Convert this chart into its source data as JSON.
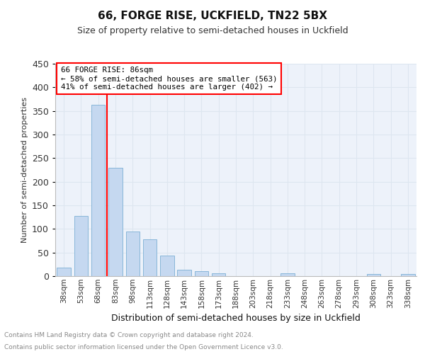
{
  "title": "66, FORGE RISE, UCKFIELD, TN22 5BX",
  "subtitle": "Size of property relative to semi-detached houses in Uckfield",
  "xlabel": "Distribution of semi-detached houses by size in Uckfield",
  "ylabel": "Number of semi-detached properties",
  "footnote1": "Contains HM Land Registry data © Crown copyright and database right 2024.",
  "footnote2": "Contains public sector information licensed under the Open Government Licence v3.0.",
  "categories": [
    "38sqm",
    "53sqm",
    "68sqm",
    "83sqm",
    "98sqm",
    "113sqm",
    "128sqm",
    "143sqm",
    "158sqm",
    "173sqm",
    "188sqm",
    "203sqm",
    "218sqm",
    "233sqm",
    "248sqm",
    "263sqm",
    "278sqm",
    "293sqm",
    "308sqm",
    "323sqm",
    "338sqm"
  ],
  "values": [
    18,
    128,
    363,
    229,
    95,
    78,
    44,
    13,
    10,
    6,
    0,
    0,
    0,
    6,
    0,
    0,
    0,
    0,
    4,
    0,
    4
  ],
  "bar_color": "#c5d8f0",
  "bar_edge_color": "#7bafd4",
  "property_bin_index": 3,
  "vline_color": "red",
  "annotation_text_line1": "66 FORGE RISE: 86sqm",
  "annotation_text_line2": "← 58% of semi-detached houses are smaller (563)",
  "annotation_text_line3": "41% of semi-detached houses are larger (402) →",
  "annotation_box_color": "red",
  "ylim": [
    0,
    450
  ],
  "grid_color": "#dde6f0",
  "background_color": "#edf2fa"
}
